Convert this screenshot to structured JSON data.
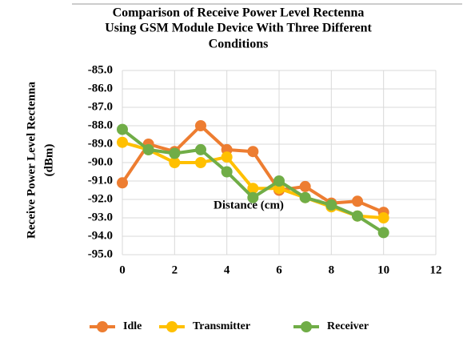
{
  "chart_data": {
    "type": "line",
    "title": [
      "Comparison of Receive Power Level Rectenna",
      "Using GSM Module Device With Three Different",
      "Conditions"
    ],
    "y_label": [
      "Receive Power Level Rectenna",
      "(dBm)"
    ],
    "annotation": "Distance (cm)",
    "x": [
      0,
      1,
      2,
      3,
      4,
      5,
      6,
      7,
      8,
      9,
      10
    ],
    "series": [
      {
        "name": "Idle",
        "color": "#ed7d31",
        "values": [
          -91.1,
          -89.0,
          -89.4,
          -88.0,
          -89.3,
          -89.4,
          -91.5,
          -91.3,
          -92.2,
          -92.1,
          -92.7
        ]
      },
      {
        "name": "Transmitter",
        "color": "#ffc000",
        "values": [
          -88.9,
          -89.3,
          -90.0,
          -90.0,
          -89.7,
          -91.4,
          -91.4,
          -91.9,
          -92.4,
          -92.9,
          -93.0
        ]
      },
      {
        "name": "Receiver",
        "color": "#70ad47",
        "values": [
          -88.2,
          -89.3,
          -89.5,
          -89.3,
          -90.5,
          -91.9,
          -91.0,
          -91.9,
          -92.3,
          -92.9,
          -93.8
        ]
      }
    ],
    "xlim": [
      0,
      12
    ],
    "xticks": [
      0,
      2,
      4,
      6,
      8,
      10,
      12
    ],
    "ylim": [
      -95,
      -85
    ],
    "yticks": [
      {
        "value": -85,
        "label": "-85.0"
      },
      {
        "value": -86,
        "label": "-86.0"
      },
      {
        "value": -87,
        "label": "-87.0"
      },
      {
        "value": -88,
        "label": "-88.0"
      },
      {
        "value": -89,
        "label": "-89.0"
      },
      {
        "value": -90,
        "label": "-90.0"
      },
      {
        "value": -91,
        "label": "-91.0"
      },
      {
        "value": -92,
        "label": "-92.0"
      },
      {
        "value": -93,
        "label": "-93.0"
      },
      {
        "value": -94,
        "label": "-94.0"
      },
      {
        "value": -95,
        "label": "-95.0"
      }
    ],
    "grid": true,
    "legend": "bottom"
  }
}
